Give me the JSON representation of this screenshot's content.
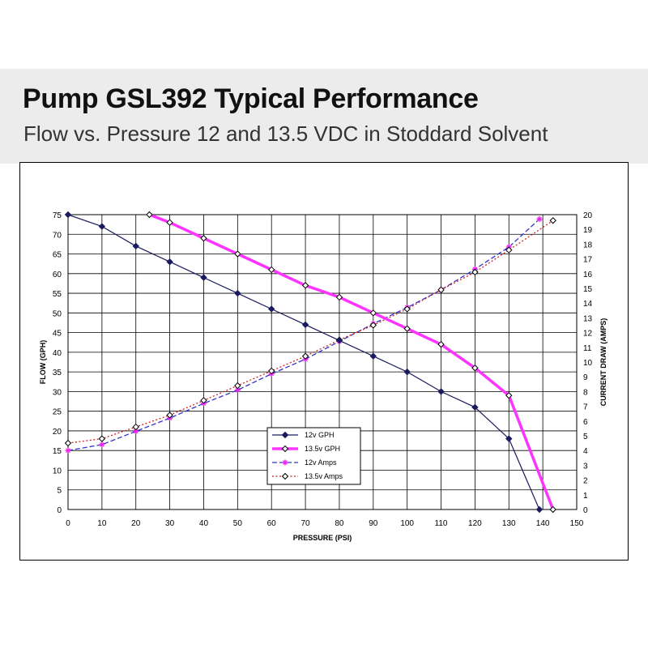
{
  "header": {
    "title": "Pump GSL392 Typical Performance",
    "subtitle": "Flow vs. Pressure 12 and 13.5 VDC in Stoddard Solvent"
  },
  "chart_data": {
    "type": "line",
    "xlabel": "PRESSURE (PSI)",
    "ylabel": "FLOW (GPH)",
    "y2label": "CURRENT DRAW (AMPS)",
    "xlim": [
      0,
      150
    ],
    "ylim": [
      0,
      75
    ],
    "y2lim": [
      0,
      20
    ],
    "x_ticks": [
      0,
      10,
      20,
      30,
      40,
      50,
      60,
      70,
      80,
      90,
      100,
      110,
      120,
      130,
      140,
      150
    ],
    "y_ticks": [
      0,
      5,
      10,
      15,
      20,
      25,
      30,
      35,
      40,
      45,
      50,
      55,
      60,
      65,
      70,
      75
    ],
    "y2_ticks": [
      0,
      1,
      2,
      3,
      4,
      5,
      6,
      7,
      8,
      9,
      10,
      11,
      12,
      13,
      14,
      15,
      16,
      17,
      18,
      19,
      20
    ],
    "grid": true,
    "legend_position": "bottom-left",
    "series": [
      {
        "name": "12v GPH",
        "axis": "left",
        "color": "#1a1a5e",
        "style": "solid",
        "marker": "filled-diamond",
        "x": [
          0,
          10,
          20,
          30,
          40,
          50,
          60,
          70,
          80,
          90,
          100,
          110,
          120,
          130,
          139
        ],
        "y": [
          75,
          72,
          67,
          63,
          59,
          55,
          51,
          47,
          43,
          39,
          35,
          30,
          26,
          18,
          0
        ]
      },
      {
        "name": "13.5v GPH",
        "axis": "left",
        "color": "#ff33ff",
        "style": "thick",
        "marker": "open-diamond",
        "x": [
          24,
          30,
          40,
          50,
          60,
          70,
          80,
          90,
          100,
          110,
          120,
          130,
          143
        ],
        "y": [
          75,
          73,
          69,
          65,
          61,
          57,
          54,
          50,
          46,
          42,
          36,
          29,
          0
        ]
      },
      {
        "name": "12v Amps",
        "axis": "right",
        "color": "#3333cc",
        "style": "dashed",
        "marker": "magenta-star",
        "x": [
          0,
          10,
          20,
          30,
          40,
          50,
          60,
          70,
          80,
          90,
          100,
          110,
          120,
          130,
          139
        ],
        "y": [
          4.0,
          4.4,
          5.3,
          6.2,
          7.2,
          8.1,
          9.2,
          10.2,
          11.4,
          12.6,
          13.7,
          14.9,
          16.3,
          17.8,
          19.7
        ]
      },
      {
        "name": "13.5v Amps",
        "axis": "right",
        "color": "#cc2222",
        "style": "dotted",
        "marker": "open-diamond",
        "x": [
          0,
          10,
          20,
          30,
          40,
          50,
          60,
          70,
          80,
          90,
          100,
          110,
          120,
          130,
          143
        ],
        "y": [
          4.5,
          4.8,
          5.6,
          6.4,
          7.4,
          8.4,
          9.4,
          10.4,
          11.5,
          12.5,
          13.6,
          14.9,
          16.1,
          17.6,
          19.6
        ]
      }
    ]
  }
}
